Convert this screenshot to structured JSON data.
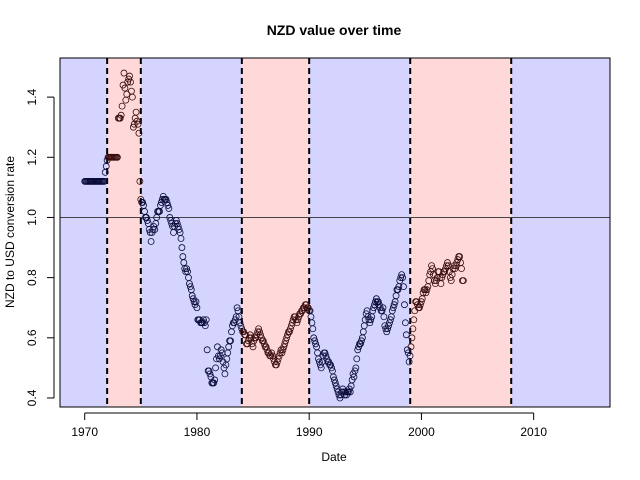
{
  "chart_data": {
    "type": "scatter",
    "title": "NZD value over time",
    "xlabel": "Date",
    "ylabel": "NZD to USD conversion rate",
    "xlim": [
      1967.8,
      2016.8
    ],
    "ylim": [
      0.37,
      1.53
    ],
    "x_ticks": [
      1970,
      1980,
      1990,
      2000,
      2010
    ],
    "y_ticks": [
      0.4,
      0.6,
      0.8,
      1.0,
      1.2,
      1.4
    ],
    "reference_line_y": 1.0,
    "vertical_dashed_lines_x": [
      1972.0,
      1975.0,
      1984.0,
      1990.0,
      1999.0,
      2008.0
    ],
    "shaded_bands": [
      {
        "from": 1967.8,
        "to": 1972.0,
        "color": "#d4d4ff"
      },
      {
        "from": 1972.0,
        "to": 1975.0,
        "color": "#ffd9d9"
      },
      {
        "from": 1975.0,
        "to": 1984.0,
        "color": "#d4d4ff"
      },
      {
        "from": 1984.0,
        "to": 1990.0,
        "color": "#ffd9d9"
      },
      {
        "from": 1990.0,
        "to": 1999.0,
        "color": "#d4d4ff"
      },
      {
        "from": 1999.0,
        "to": 2008.0,
        "color": "#ffd9d9"
      },
      {
        "from": 2008.0,
        "to": 2016.8,
        "color": "#d4d4ff"
      }
    ],
    "grid": false,
    "legend": "none",
    "series": [
      {
        "x_start": 1970.0,
        "x_step": 0.0833,
        "values": [
          1.12,
          1.12,
          1.12,
          1.12,
          1.12,
          1.12,
          1.12,
          1.12,
          1.12,
          1.12,
          1.12,
          1.12,
          1.12,
          1.12,
          1.12,
          1.12,
          1.12,
          1.12,
          1.12,
          1.12,
          1.12,
          1.12,
          1.15,
          1.17,
          1.19,
          1.2,
          1.2,
          1.2,
          1.2,
          1.2,
          1.2,
          1.2,
          1.2,
          1.2,
          1.2,
          1.2,
          1.33,
          1.33,
          1.33,
          1.34,
          1.37,
          1.44,
          1.48,
          1.43,
          1.39,
          1.41,
          1.45,
          1.46,
          1.47,
          1.45,
          1.42,
          1.4,
          1.3,
          1.31,
          1.33,
          1.35,
          1.32,
          1.31,
          1.28,
          1.12,
          1.06,
          1.05,
          1.05,
          1.04,
          1.02,
          1.0,
          1.0,
          0.99,
          0.98,
          0.96,
          0.95,
          0.92,
          0.95,
          0.96,
          0.97,
          0.96,
          0.98,
          1.0,
          1.02,
          1.02,
          1.02,
          1.04,
          1.05,
          1.06,
          1.07,
          1.06,
          1.06,
          1.06,
          1.05,
          1.04,
          1.03,
          1.0,
          0.99,
          0.98,
          0.97,
          0.95,
          0.97,
          0.98,
          0.99,
          0.98,
          0.97,
          0.96,
          0.95,
          0.93,
          0.9,
          0.87,
          0.85,
          0.83,
          0.82,
          0.83,
          0.82,
          0.8,
          0.78,
          0.77,
          0.76,
          0.74,
          0.73,
          0.72,
          0.71,
          0.72,
          0.7,
          0.66,
          0.66,
          0.66,
          0.65,
          0.65,
          0.65,
          0.66,
          0.65,
          0.64,
          0.66,
          0.56,
          0.49,
          0.49,
          0.48,
          0.47,
          0.45,
          0.45,
          0.45,
          0.46,
          0.5,
          0.53,
          0.57,
          0.54,
          0.53,
          0.54,
          0.56,
          0.55,
          0.52,
          0.5,
          0.48,
          0.51,
          0.53,
          0.55,
          0.57,
          0.59,
          0.59,
          0.62,
          0.64,
          0.65,
          0.65,
          0.66,
          0.67,
          0.7,
          0.69,
          0.67,
          0.65,
          0.64,
          0.63,
          0.62,
          0.62,
          0.61,
          0.61,
          0.58,
          0.58,
          0.59,
          0.6,
          0.61,
          0.6,
          0.58,
          0.57,
          0.59,
          0.6,
          0.6,
          0.61,
          0.62,
          0.63,
          0.62,
          0.61,
          0.6,
          0.59,
          0.59,
          0.58,
          0.57,
          0.57,
          0.56,
          0.55,
          0.55,
          0.54,
          0.54,
          0.55,
          0.54,
          0.53,
          0.52,
          0.51,
          0.51,
          0.52,
          0.53,
          0.54,
          0.55,
          0.56,
          0.55,
          0.56,
          0.57,
          0.58,
          0.59,
          0.6,
          0.61,
          0.62,
          0.62,
          0.63,
          0.64,
          0.65,
          0.66,
          0.67,
          0.67,
          0.66,
          0.65,
          0.66,
          0.67,
          0.68,
          0.68,
          0.69,
          0.69,
          0.7,
          0.7,
          0.71,
          0.71,
          0.7,
          0.7,
          0.69,
          0.69,
          0.67,
          0.65,
          0.63,
          0.6,
          0.59,
          0.58,
          0.57,
          0.55,
          0.53,
          0.52,
          0.51,
          0.5,
          0.52,
          0.54,
          0.55,
          0.55,
          0.54,
          0.53,
          0.52,
          0.52,
          0.51,
          0.51,
          0.5,
          0.49,
          0.47,
          0.46,
          0.45,
          0.44,
          0.43,
          0.42,
          0.41,
          0.4,
          0.41,
          0.42,
          0.43,
          0.42,
          0.41,
          0.42,
          0.41,
          0.42,
          0.42,
          0.43,
          0.42,
          0.44,
          0.46,
          0.48,
          0.47,
          0.49,
          0.5,
          0.53,
          0.56,
          0.57,
          0.58,
          0.58,
          0.59,
          0.6,
          0.62,
          0.64,
          0.66,
          0.68,
          0.69,
          0.67,
          0.66,
          0.65,
          0.66,
          0.67,
          0.69,
          0.7,
          0.71,
          0.72,
          0.73,
          0.72,
          0.72,
          0.71,
          0.7,
          0.69,
          0.69,
          0.7,
          0.67,
          0.64,
          0.63,
          0.62,
          0.63,
          0.64,
          0.65,
          0.66,
          0.67,
          0.69,
          0.7,
          0.71,
          0.72,
          0.74,
          0.76,
          0.76,
          0.77,
          0.79,
          0.8,
          0.81,
          0.8,
          0.77,
          0.71,
          0.65,
          0.61,
          0.56,
          0.55,
          0.52,
          0.54,
          0.57,
          0.6,
          0.63,
          0.66,
          0.69,
          0.72,
          0.72,
          0.71,
          0.7,
          0.7,
          0.71,
          0.72,
          0.73,
          0.75,
          0.76,
          0.76,
          0.75,
          0.76,
          0.77,
          0.79,
          0.81,
          0.82,
          0.84,
          0.83,
          0.81,
          0.79,
          0.78,
          0.79,
          0.8,
          0.82,
          0.82,
          0.8,
          0.78,
          0.8,
          0.81,
          0.82,
          0.82,
          0.83,
          0.84,
          0.85,
          0.84,
          0.82,
          0.8,
          0.79,
          0.81,
          0.83,
          0.84,
          0.83,
          0.84,
          0.85,
          0.86,
          0.87,
          0.87,
          0.85,
          0.83,
          0.79,
          0.79
        ]
      }
    ]
  }
}
